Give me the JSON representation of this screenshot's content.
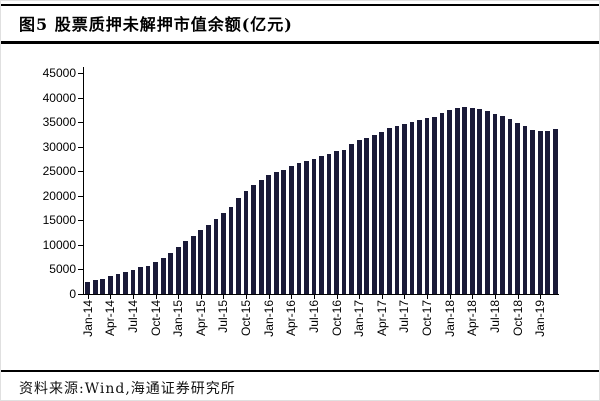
{
  "figure": {
    "title": "图5  股票质押未解押市值余额(亿元)",
    "source_note": "资料来源:Wind,海通证券研究所"
  },
  "chart_data": {
    "type": "bar",
    "title": "股票质押未解押市值余额(亿元)",
    "unit": "亿元",
    "bar_color": "#1a1a38",
    "axis_color": "#000000",
    "ylim": [
      0,
      45000
    ],
    "y_tick_interval": 5000,
    "y_tick_labels": [
      "0",
      "5000",
      "10000",
      "15000",
      "20000",
      "25000",
      "30000",
      "35000",
      "40000",
      "45000"
    ],
    "x_tick_labels": [
      "Jan-14",
      "Apr-14",
      "Jul-14",
      "Oct-14",
      "Jan-15",
      "Apr-15",
      "Jul-15",
      "Oct-15",
      "Jan-16",
      "Apr-16",
      "Jul-16",
      "Oct-16",
      "Jan-17",
      "Apr-17",
      "Jul-17",
      "Oct-17",
      "Jan-18",
      "Apr-18",
      "Jul-18",
      "Oct-18",
      "Jan-19"
    ],
    "x_tick_every_n_months": 3,
    "legend": "none",
    "grid": "off",
    "categories": [
      "Jan-14",
      "Feb-14",
      "Mar-14",
      "Apr-14",
      "May-14",
      "Jun-14",
      "Jul-14",
      "Aug-14",
      "Sep-14",
      "Oct-14",
      "Nov-14",
      "Dec-14",
      "Jan-15",
      "Feb-15",
      "Mar-15",
      "Apr-15",
      "May-15",
      "Jun-15",
      "Jul-15",
      "Aug-15",
      "Sep-15",
      "Oct-15",
      "Nov-15",
      "Dec-15",
      "Jan-16",
      "Feb-16",
      "Mar-16",
      "Apr-16",
      "May-16",
      "Jun-16",
      "Jul-16",
      "Aug-16",
      "Sep-16",
      "Oct-16",
      "Nov-16",
      "Dec-16",
      "Jan-17",
      "Feb-17",
      "Mar-17",
      "Apr-17",
      "May-17",
      "Jun-17",
      "Jul-17",
      "Aug-17",
      "Sep-17",
      "Oct-17",
      "Nov-17",
      "Dec-17",
      "Jan-18",
      "Feb-18",
      "Mar-18",
      "Apr-18",
      "May-18",
      "Jun-18",
      "Jul-18",
      "Aug-18",
      "Sep-18",
      "Oct-18",
      "Nov-18",
      "Dec-18",
      "Jan-19",
      "Feb-19",
      "Mar-19"
    ],
    "values": [
      2500,
      2750,
      3050,
      3600,
      4050,
      4550,
      4950,
      5450,
      5800,
      6450,
      7250,
      8350,
      9600,
      10700,
      11800,
      13000,
      14000,
      15200,
      16500,
      17800,
      19500,
      21000,
      22200,
      23300,
      24300,
      24800,
      25300,
      26000,
      26600,
      27100,
      27500,
      28000,
      28600,
      29100,
      29400,
      30500,
      31300,
      31700,
      32300,
      32900,
      33800,
      34300,
      34700,
      35000,
      35500,
      35800,
      36100,
      36900,
      37500,
      37800,
      38000,
      37900,
      37600,
      37300,
      36700,
      36200,
      35600,
      34800,
      34200,
      33400,
      33100,
      33100,
      33600
    ]
  }
}
